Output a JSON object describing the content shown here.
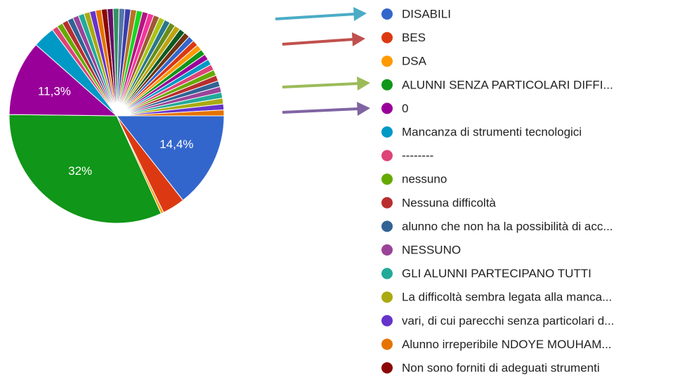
{
  "chart_data": {
    "type": "pie",
    "categories": [
      "DISABILI",
      "BES",
      "DSA",
      "ALUNNI SENZA PARTICOLARI DIFFI...",
      "0",
      "Mancanza di strumenti tecnologici",
      "--------",
      "nessuno",
      "Nessuna difficoltà",
      "alunno che non ha la possibilità di acc...",
      "NESSUNO",
      "GLI ALUNNI PARTECIPANO TUTTI",
      "La difficoltà sembra legata alla manca...",
      "vari, di cui parecchi senza particolari d...",
      "Alunno irreperibile NDOYE MOUHAM...",
      "Non sono forniti di adeguati strumenti",
      null,
      null,
      null,
      null,
      null,
      null,
      null,
      null,
      null,
      null,
      null,
      null,
      null,
      null,
      null,
      null,
      null,
      null,
      null,
      null,
      null,
      null,
      null,
      null,
      null,
      null,
      null,
      null,
      null,
      null
    ],
    "values": [
      14.4,
      3.4,
      0.4,
      32,
      11.3,
      3.3,
      0.88,
      0.88,
      0.88,
      0.88,
      0.88,
      0.88,
      0.88,
      0.88,
      0.88,
      0.88,
      0.88,
      0.88,
      0.88,
      0.88,
      0.88,
      0.88,
      0.88,
      0.88,
      0.88,
      0.88,
      0.88,
      0.88,
      0.88,
      0.88,
      0.88,
      0.88,
      0.88,
      0.88,
      0.88,
      0.88,
      0.88,
      0.88,
      0.88,
      0.88,
      0.88,
      0.88,
      0.88,
      0.88,
      0.88,
      0.88
    ],
    "value_labels": [
      "14,4%",
      null,
      null,
      "32%",
      "11,3%",
      null,
      null,
      null,
      null,
      null,
      null,
      null,
      null,
      null,
      null,
      null,
      null,
      null,
      null,
      null,
      null,
      null,
      null,
      null,
      null,
      null,
      null,
      null,
      null,
      null,
      null,
      null,
      null,
      null,
      null,
      null,
      null,
      null,
      null,
      null,
      null,
      null,
      null,
      null,
      null,
      null
    ],
    "colors": [
      "#3366cc",
      "#dc3912",
      "#ff9900",
      "#109618",
      "#990099",
      "#0099c6",
      "#dd4477",
      "#66aa00",
      "#b82e2e",
      "#316395",
      "#994499",
      "#22aa99",
      "#aaaa11",
      "#6633cc",
      "#e67300",
      "#8b0707",
      "#651067",
      "#329262",
      "#5574a6",
      "#3b3eac",
      "#b77322",
      "#16d620",
      "#b91383",
      "#f4359e",
      "#9c5935",
      "#a9c413",
      "#2a778d",
      "#668d1c",
      "#bea413",
      "#0c5922",
      "#743411",
      "#3366cc",
      "#dc3912",
      "#ff9900",
      "#109618",
      "#990099",
      "#0099c6",
      "#dd4477",
      "#66aa00",
      "#b82e2e",
      "#316395",
      "#994499",
      "#22aa99",
      "#aaaa11",
      "#6633cc",
      "#e67300"
    ],
    "legend": "right"
  }
}
